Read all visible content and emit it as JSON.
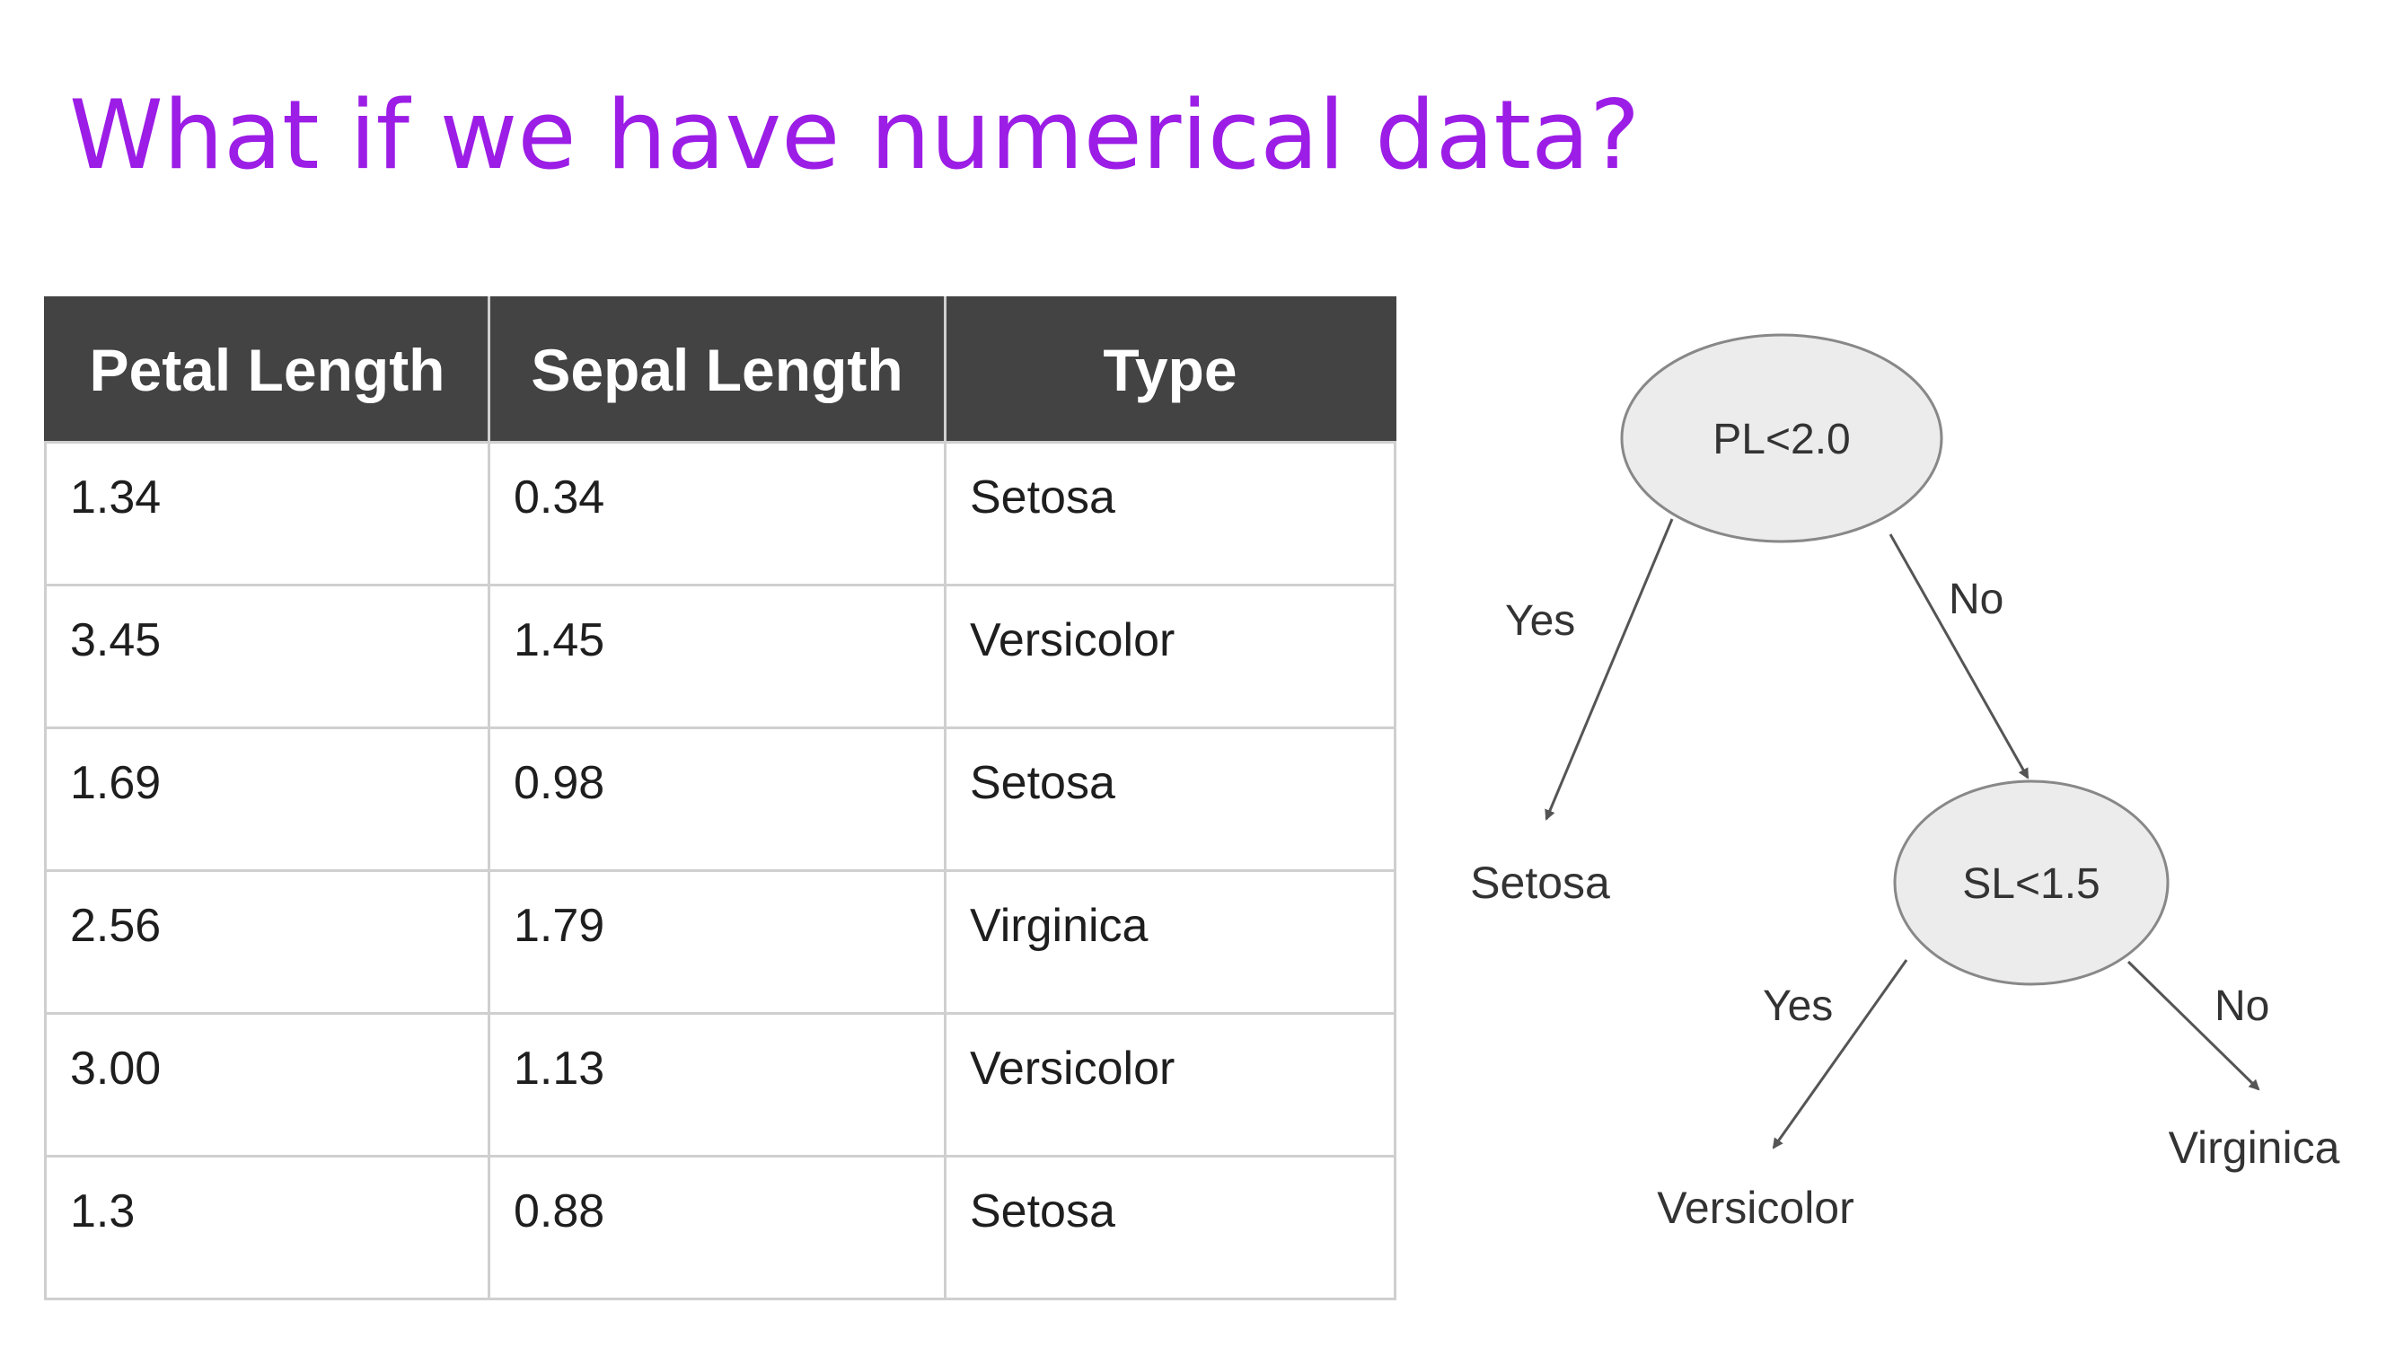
{
  "title": "What if we have numerical data?",
  "table": {
    "headers": [
      "Petal Length",
      "Sepal Length",
      "Type"
    ],
    "rows": [
      [
        "1.34",
        "0.34",
        "Setosa"
      ],
      [
        "3.45",
        "1.45",
        "Versicolor"
      ],
      [
        "1.69",
        "0.98",
        "Setosa"
      ],
      [
        "2.56",
        "1.79",
        "Virginica"
      ],
      [
        "3.00",
        "1.13",
        "Versicolor"
      ],
      [
        "1.3",
        "0.88",
        "Setosa"
      ]
    ]
  },
  "tree": {
    "root": {
      "label": "PL<2.0",
      "yes_label": "Yes",
      "no_label": "No",
      "yes_leaf": "Setosa"
    },
    "child": {
      "label": "SL<1.5",
      "yes_label": "Yes",
      "no_label": "No",
      "yes_leaf": "Versicolor",
      "no_leaf": "Virginica"
    }
  },
  "colors": {
    "title": "#9c1de6",
    "header_bg": "#434343",
    "node_fill": "#ececec"
  }
}
